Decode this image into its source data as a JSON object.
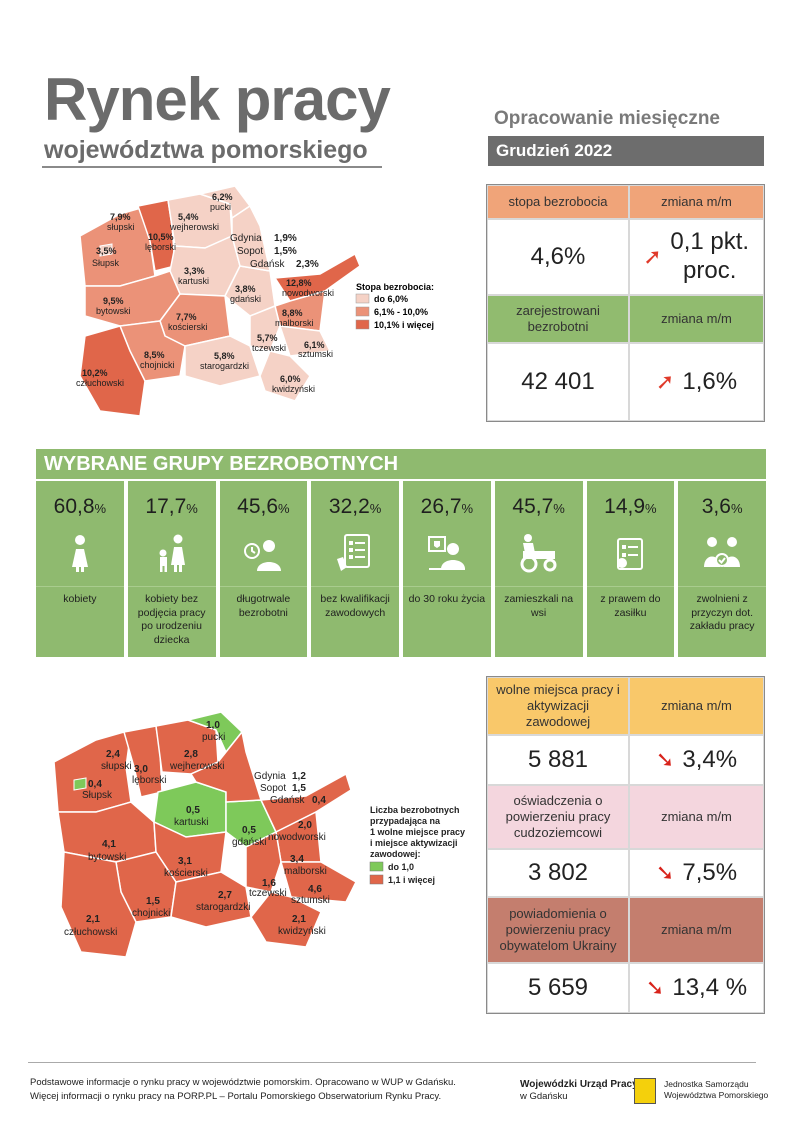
{
  "header": {
    "title": "Rynek pracy",
    "subtitle": "województwa pomorskiego",
    "report_type": "Opracowanie miesięczne",
    "month": "Grudzień 2022"
  },
  "stats_top": {
    "unemployment_rate_label": "stopa bezrobocia",
    "change_label": "zmiana m/m",
    "unemployment_rate": "4,6%",
    "unemployment_change": "0,1 pkt. proc.",
    "registered_label": "zarejestrowani bezrobotni",
    "registered": "42 401",
    "registered_change": "1,6%",
    "colors": {
      "rate_header": "#f0a479",
      "registered_header": "#91bb6f"
    }
  },
  "map_rate": {
    "legend_title": "Stopa bezrobocia:",
    "legend": [
      "do 6,0%",
      "6,1% - 10,0%",
      "10,1% i więcej"
    ],
    "colors": [
      "#f5d2c6",
      "#eb9278",
      "#e0664a"
    ],
    "labels": [
      {
        "v": "6,2%",
        "n": "pucki"
      },
      {
        "v": "7,9%",
        "n": "słupski"
      },
      {
        "v": "5,4%",
        "n": "wejherowski"
      },
      {
        "v": "10,5%",
        "n": "lęborski"
      },
      {
        "v": "3,5%",
        "n": "Słupsk"
      },
      {
        "v": "3,3%",
        "n": "kartuski"
      },
      {
        "v": "9,5%",
        "n": "bytowski"
      },
      {
        "v": "7,7%",
        "n": "kościerski"
      },
      {
        "v": "3,8%",
        "n": "gdański"
      },
      {
        "v": "12,8%",
        "n": "nowodworski"
      },
      {
        "v": "8,8%",
        "n": "malborski"
      },
      {
        "v": "5,7%",
        "n": "tczewski"
      },
      {
        "v": "6,1%",
        "n": "sztumski"
      },
      {
        "v": "10,2%",
        "n": "człuchowski"
      },
      {
        "v": "8,5%",
        "n": "chojnicki"
      },
      {
        "v": "5,8%",
        "n": "starogardzki"
      },
      {
        "v": "6,0%",
        "n": "kwidzyński"
      }
    ],
    "cities": [
      "Gdynia",
      "1,9%",
      "Sopot",
      "1,5%",
      "Gdańsk",
      "2,3%"
    ]
  },
  "groups": {
    "title": "WYBRANE GRUPY BEZROBOTNYCH",
    "items": [
      {
        "pct": "60,8",
        "unit": "%",
        "label": "kobiety",
        "icon": "woman-icon"
      },
      {
        "pct": "17,7",
        "unit": "%",
        "label": "kobiety bez podjęcia pracy po urodzeniu dziecka",
        "icon": "mother-child-icon"
      },
      {
        "pct": "45,6",
        "unit": "%",
        "label": "długotrwale bezrobotni",
        "icon": "clock-person-icon"
      },
      {
        "pct": "32,2",
        "unit": "%",
        "label": "bez kwalifikacji zawodowych",
        "icon": "checklist-icon"
      },
      {
        "pct": "26,7",
        "unit": "%",
        "label": "do 30 roku życia",
        "icon": "young-person-icon"
      },
      {
        "pct": "45,7",
        "unit": "%",
        "label": "zamieszkali na wsi",
        "icon": "tractor-icon"
      },
      {
        "pct": "14,9",
        "unit": "%",
        "label": "z prawem do zasiłku",
        "icon": "benefit-document-icon"
      },
      {
        "pct": "3,6",
        "unit": "%",
        "label": "zwolnieni z przyczyn dot. zakładu pracy",
        "icon": "handshake-icon"
      }
    ]
  },
  "map_offers": {
    "legend_title": [
      "Liczba bezrobotnych",
      "przypadająca na",
      "1 wolne miejsce pracy",
      "i miejsce aktywizacji",
      "zawodowej:"
    ],
    "legend": [
      "do 1,0",
      "1,1 i więcej"
    ],
    "colors": [
      "#7ec95a",
      "#e0664a"
    ],
    "labels": [
      {
        "v": "1,0",
        "n": "pucki"
      },
      {
        "v": "2,4",
        "n": "słupski"
      },
      {
        "v": "2,8",
        "n": "wejherowski"
      },
      {
        "v": "3,0",
        "n": "lęborski"
      },
      {
        "v": "0,4",
        "n": "Słupsk"
      },
      {
        "v": "0,5",
        "n": "kartuski"
      },
      {
        "v": "0,5",
        "n": "gdański"
      },
      {
        "v": "2,0",
        "n": "nowodworski"
      },
      {
        "v": "4,1",
        "n": "bytowski"
      },
      {
        "v": "3,1",
        "n": "kościerski"
      },
      {
        "v": "3,4",
        "n": "malborski"
      },
      {
        "v": "1,6",
        "n": "tczewski"
      },
      {
        "v": "4,6",
        "n": "sztumski"
      },
      {
        "v": "2,7",
        "n": "starogardzki"
      },
      {
        "v": "1,5",
        "n": "chojnicki"
      },
      {
        "v": "2,1",
        "n": "człuchowski"
      },
      {
        "v": "2,1",
        "n": "kwidzyński"
      }
    ],
    "cities": [
      "Gdynia",
      "1,2",
      "Sopot",
      "1,5",
      "Gdańsk",
      "0,4"
    ]
  },
  "stats_bottom": {
    "change_label": "zmiana m/m",
    "vacancies_label": "wolne miejsca pracy i aktywizacji zawodowej",
    "vacancies": "5 881",
    "vacancies_change": "3,4%",
    "declarations_label": "oświadczenia o powierzeniu pracy cudzoziemcowi",
    "declarations": "3 802",
    "declarations_change": "7,5%",
    "notifications_label": "powiadomienia o powierzeniu pracy obywatelom Ukrainy",
    "notifications": "5 659",
    "notifications_change": "13,4 %",
    "colors": {
      "vacancies": "#f9c86a",
      "declarations": "#f4d6de",
      "notifications": "#c47e6e"
    }
  },
  "footer": {
    "line1": "Podstawowe informacje o rynku pracy w województwie pomorskim. Opracowano w WUP w Gdańsku.",
    "line2": "Więcej informacji o rynku pracy na PORP.PL – Portalu Pomorskiego Obserwatorium Rynku Pracy.",
    "wup_name": "Wojewódzki Urząd Pracy",
    "wup_city": "w Gdańsku",
    "jst_line1": "Jednostka Samorządu",
    "jst_line2": "Województwa Pomorskiego"
  }
}
